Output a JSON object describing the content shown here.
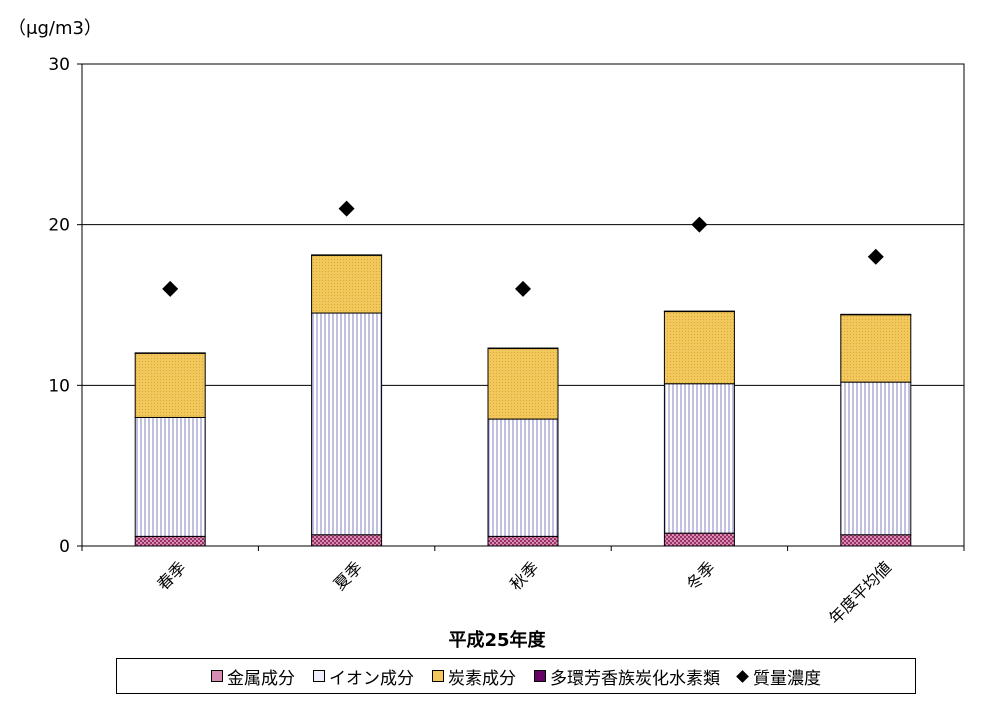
{
  "chart_data": {
    "type": "bar",
    "stacked": true,
    "title": "",
    "ylabel": "（μg/m3）",
    "xlabel": "平成25年度",
    "ylim": [
      0,
      30
    ],
    "yticks": [
      0,
      10,
      20,
      30
    ],
    "grid": true,
    "categories": [
      "春季",
      "夏季",
      "秋季",
      "冬季",
      "年度平均値"
    ],
    "series": [
      {
        "name": "金属成分",
        "values": [
          0.6,
          0.7,
          0.6,
          0.8,
          0.7
        ],
        "color": "#cc6699"
      },
      {
        "name": "イオン成分",
        "values": [
          7.4,
          13.8,
          7.3,
          9.3,
          9.5
        ],
        "color": "#ccccff"
      },
      {
        "name": "炭素成分",
        "values": [
          4.0,
          3.6,
          4.4,
          4.5,
          4.2
        ],
        "color": "#f2c75c"
      },
      {
        "name": "多環芳香族炭化水素類",
        "values": [
          0.02,
          0.02,
          0.02,
          0.02,
          0.02
        ],
        "color": "#660066"
      },
      {
        "name": "質量濃度",
        "type": "marker",
        "values": [
          16,
          21,
          16,
          20,
          18
        ],
        "color": "#000000"
      }
    ],
    "legend_position": "bottom"
  }
}
